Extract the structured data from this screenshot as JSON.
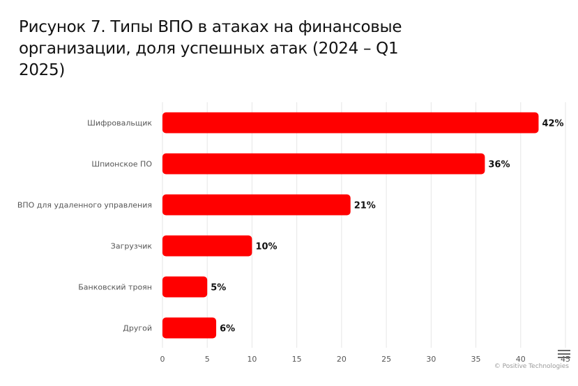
{
  "title": "Рисунок 7. Типы ВПО в атаках на финансовые организации, доля успешных атак (2024 – Q1 2025)",
  "credits": "© Positive Technologies",
  "menu": {
    "icon": "hamburger-menu-icon"
  },
  "colors": {
    "bar": "#ff0000",
    "grid": "#e6e6e6",
    "category_text": "#555555",
    "tick_text": "#555555",
    "data_label": "#111111"
  },
  "chart_data": {
    "type": "bar",
    "orientation": "horizontal",
    "title": "Рисунок 7. Типы ВПО в атаках на финансовые организации, доля успешных атак (2024 – Q1 2025)",
    "xlabel": "",
    "ylabel": "",
    "categories": [
      "Шифровальщик",
      "Шпионское ПО",
      "ВПО для удаленного управления",
      "Загрузчик",
      "Банковский троян",
      "Другой"
    ],
    "values": [
      42,
      36,
      21,
      10,
      5,
      6
    ],
    "data_labels": [
      "42%",
      "36%",
      "21%",
      "10%",
      "5%",
      "6%"
    ],
    "xlim": [
      0,
      45
    ],
    "x_ticks": [
      0,
      5,
      10,
      15,
      20,
      25,
      30,
      35,
      40,
      45
    ],
    "x_tick_labels": [
      "0",
      "5",
      "10",
      "15",
      "20",
      "25",
      "30",
      "35",
      "40",
      "45"
    ],
    "grid": true,
    "legend": "none"
  }
}
